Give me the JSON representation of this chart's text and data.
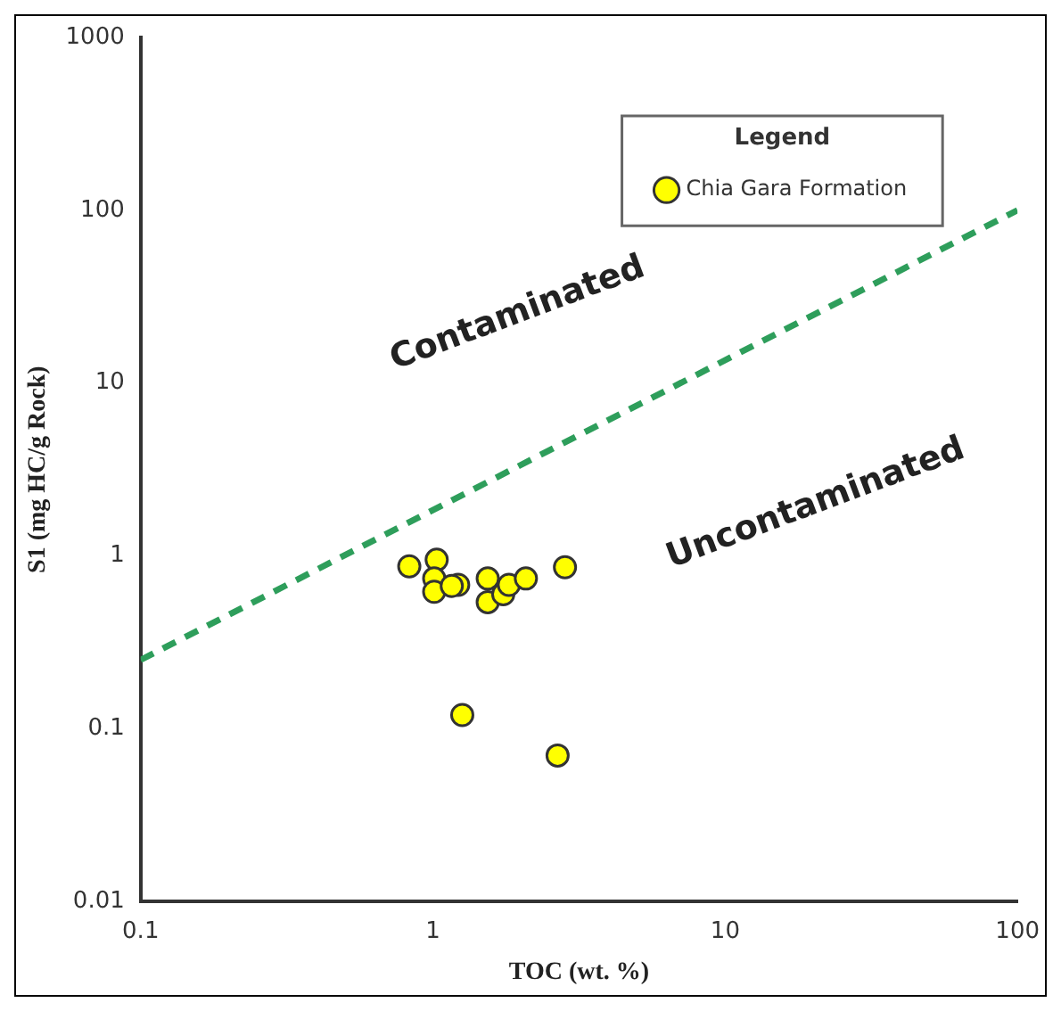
{
  "chart_data": {
    "type": "scatter",
    "xlabel": "TOC (wt. %)",
    "ylabel": "S1 (mg HC/g Rock)",
    "legend_title": "Legend",
    "series": [
      {
        "name": "Chia Gara Formation",
        "color": "#ffff00",
        "marker": "circle",
        "x": [
          0.83,
          1.03,
          1.01,
          1.01,
          1.22,
          1.16,
          1.54,
          1.54,
          1.74,
          1.82,
          2.08,
          2.83,
          1.26,
          2.67
        ],
        "values": [
          0.87,
          0.95,
          0.74,
          0.62,
          0.68,
          0.67,
          0.74,
          0.54,
          0.6,
          0.68,
          0.74,
          0.86,
          0.12,
          0.07
        ]
      },
      {
        "type": "line",
        "color": "#2e9e5b",
        "line_style": "dashed",
        "marker": "none",
        "x": [
          0.1,
          100
        ],
        "values": [
          0.25,
          100
        ]
      }
    ],
    "log": "xy",
    "xlim": [
      0.1,
      100
    ],
    "xticks": [
      0.1,
      1,
      10,
      100
    ],
    "ylim": [
      0.01,
      1000
    ],
    "yticks": [
      0.01,
      0.1,
      1,
      10,
      100,
      1000
    ],
    "grid": false,
    "legend": "top right",
    "annotations": [
      "Contaminated",
      "Uncontaminated"
    ]
  }
}
